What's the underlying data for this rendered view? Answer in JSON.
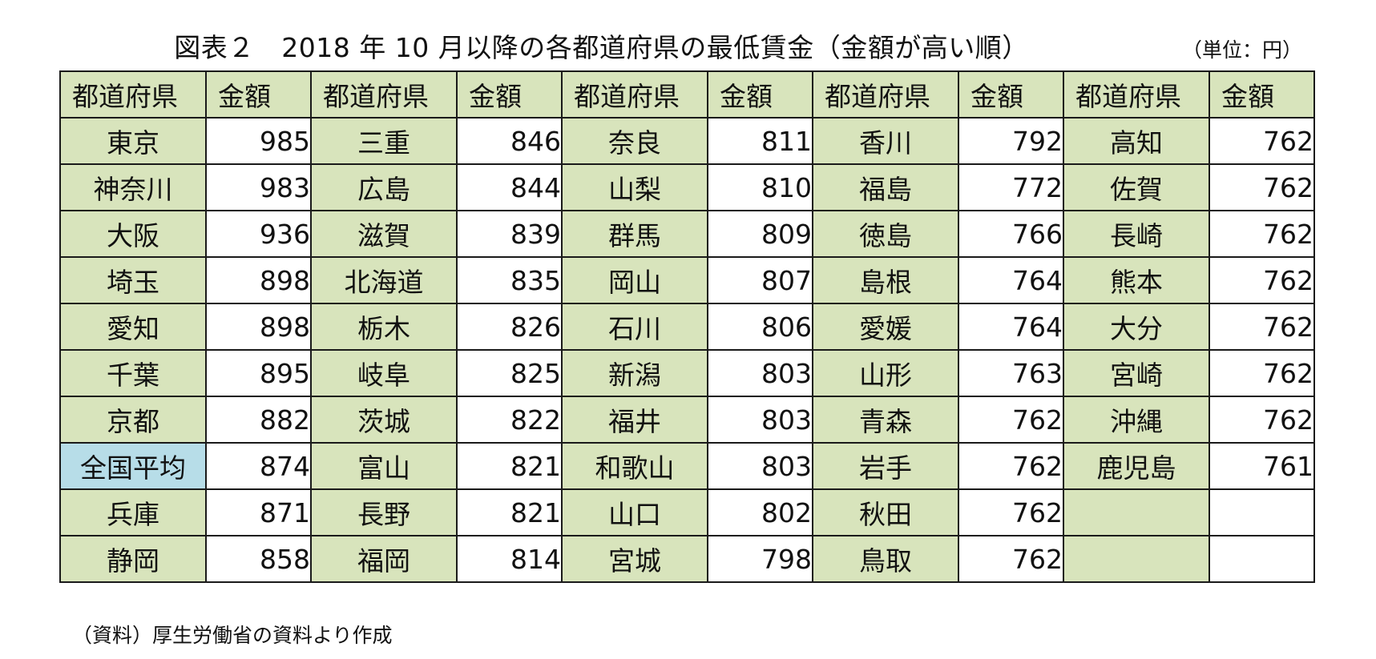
{
  "title": "図表２　2018 年 10 月以降の各都道府県の最低賃金（金額が高い順）",
  "unit": "（単位：円）",
  "table": {
    "headers": [
      "都道府県",
      "金額",
      "都道府県",
      "金額",
      "都道府県",
      "金額",
      "都道府県",
      "金額",
      "都道府県",
      "金額"
    ],
    "rows": [
      [
        "東京",
        "985",
        "三重",
        "846",
        "奈良",
        "811",
        "香川",
        "792",
        "高知",
        "762"
      ],
      [
        "神奈川",
        "983",
        "広島",
        "844",
        "山梨",
        "810",
        "福島",
        "772",
        "佐賀",
        "762"
      ],
      [
        "大阪",
        "936",
        "滋賀",
        "839",
        "群馬",
        "809",
        "徳島",
        "766",
        "長崎",
        "762"
      ],
      [
        "埼玉",
        "898",
        "北海道",
        "835",
        "岡山",
        "807",
        "島根",
        "764",
        "熊本",
        "762"
      ],
      [
        "愛知",
        "898",
        "栃木",
        "826",
        "石川",
        "806",
        "愛媛",
        "764",
        "大分",
        "762"
      ],
      [
        "千葉",
        "895",
        "岐阜",
        "825",
        "新潟",
        "803",
        "山形",
        "763",
        "宮崎",
        "762"
      ],
      [
        "京都",
        "882",
        "茨城",
        "822",
        "福井",
        "803",
        "青森",
        "762",
        "沖縄",
        "762"
      ],
      [
        "全国平均",
        "874",
        "富山",
        "821",
        "和歌山",
        "803",
        "岩手",
        "762",
        "鹿児島",
        "761"
      ],
      [
        "兵庫",
        "871",
        "長野",
        "821",
        "山口",
        "802",
        "秋田",
        "762",
        "",
        ""
      ],
      [
        "静岡",
        "858",
        "福岡",
        "814",
        "宮城",
        "798",
        "鳥取",
        "762",
        "",
        ""
      ]
    ],
    "highlight_label": "全国平均",
    "colors": {
      "name_cell": "#d8e4bc",
      "highlight_cell": "#b7dde8",
      "amount_cell": "#ffffff",
      "border": "#1a1a1a"
    }
  },
  "source": "（資料）厚生労働省の資料より作成"
}
